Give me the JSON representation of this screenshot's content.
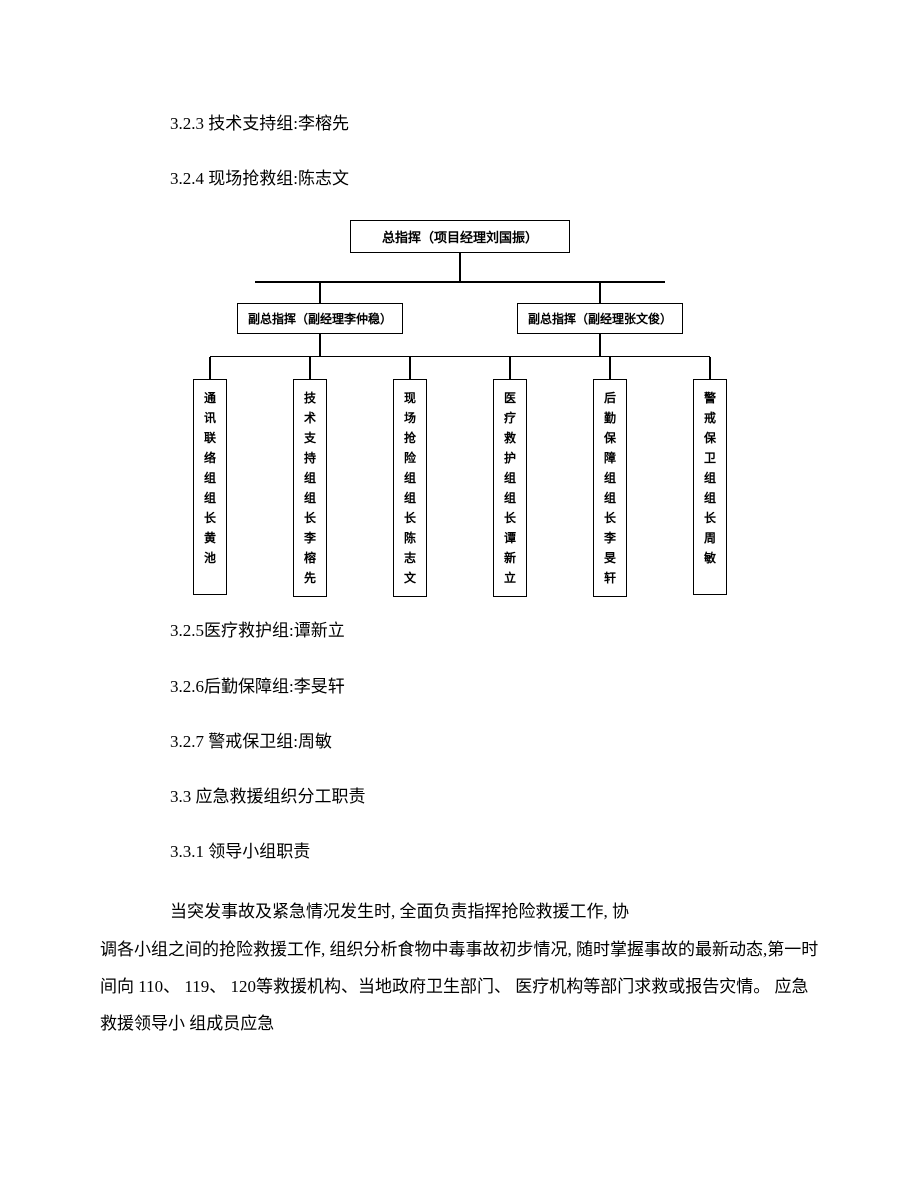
{
  "text": {
    "l1": "3.2.3 技术支持组:李榕先",
    "l2": "3.2.4 现场抢救组:陈志文",
    "l3": "3.2.5医疗救护组:谭新立",
    "l4": "3.2.6后勤保障组:李旻轩",
    "l5": "3.2.7 警戒保卫组:周敏",
    "l6": "3.3 应急救援组织分工职责",
    "l7": "3.3.1 领导小组职责",
    "para_first": "当突发事故及紧急情况发生时, 全面负责指挥抢险救援工作, 协",
    "para_rest": "调各小组之间的抢险救援工作, 组织分析食物中毒事故初步情况, 随时掌握事故的最新动态,第一时间向 110、 119、 120等救援机构、当地政府卫生部门、 医疗机构等部门求救或报告灾情。 应急救援领导小 组成员应急"
  },
  "chart": {
    "type": "tree",
    "border_color": "#000000",
    "background_color": "#ffffff",
    "top": "总指挥（项目经理刘国振）",
    "mid_left": "副总指挥（副经理李仲稳）",
    "mid_right": "副总指挥（副经理张文俊）",
    "leaves": [
      "通讯联络组组长黄池",
      "技术支持组组长李榕先",
      "现场抢险组组长陈志文",
      "医疗救护组组长谭新立",
      "后勤保障组组长李旻轩",
      "警戒保卫组组长周敏"
    ],
    "font_family": "SimHei",
    "node_fontsize": 12,
    "top_fontsize": 13
  }
}
